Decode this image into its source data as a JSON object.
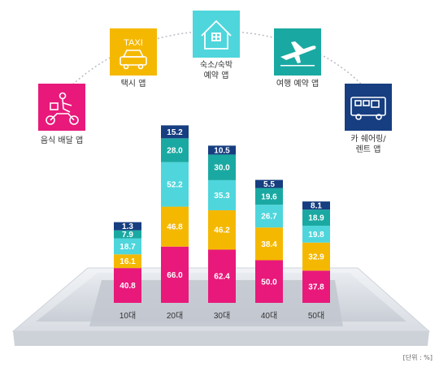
{
  "chart_data": {
    "type": "bar",
    "stacked": true,
    "categories": [
      "10대",
      "20대",
      "30대",
      "40대",
      "50대"
    ],
    "series": [
      {
        "name": "음식 배달 앱",
        "color": "#e8197b",
        "values": [
          40.8,
          66.0,
          62.4,
          50.0,
          37.8
        ]
      },
      {
        "name": "택시 앱",
        "color": "#f5b800",
        "values": [
          16.1,
          46.8,
          46.2,
          38.4,
          32.9
        ]
      },
      {
        "name": "숙소/숙박 예약 앱",
        "color": "#4ed6dc",
        "values": [
          18.7,
          52.2,
          35.3,
          26.7,
          19.8
        ]
      },
      {
        "name": "여행 예약 앱",
        "color": "#1aa9a2",
        "values": [
          7.9,
          28.0,
          30.0,
          19.6,
          18.9
        ]
      },
      {
        "name": "카 쉐어링/렌트 앱",
        "color": "#163e80",
        "values": [
          1.3,
          15.2,
          10.5,
          5.5,
          8.1
        ]
      }
    ],
    "unit": "[단위 : %]"
  },
  "legend_icons": [
    {
      "label_lines": [
        "음식 배달 앱"
      ],
      "icon": "delivery-scooter-icon",
      "color": "#e8197b",
      "series": 0
    },
    {
      "label_lines": [
        "택시 앱"
      ],
      "icon": "taxi-icon",
      "color": "#f5b800",
      "series": 1
    },
    {
      "label_lines": [
        "숙소/숙박",
        "예약 앱"
      ],
      "icon": "house-icon",
      "color": "#4ed6dc",
      "series": 2
    },
    {
      "label_lines": [
        "여행 예약 앱"
      ],
      "icon": "airplane-icon",
      "color": "#1aa9a2",
      "series": 3
    },
    {
      "label_lines": [
        "카 쉐어링/",
        "렌트 앱"
      ],
      "icon": "camper-van-icon",
      "color": "#163e80",
      "series": 4
    }
  ],
  "taxi_sign_text": "TAXI"
}
